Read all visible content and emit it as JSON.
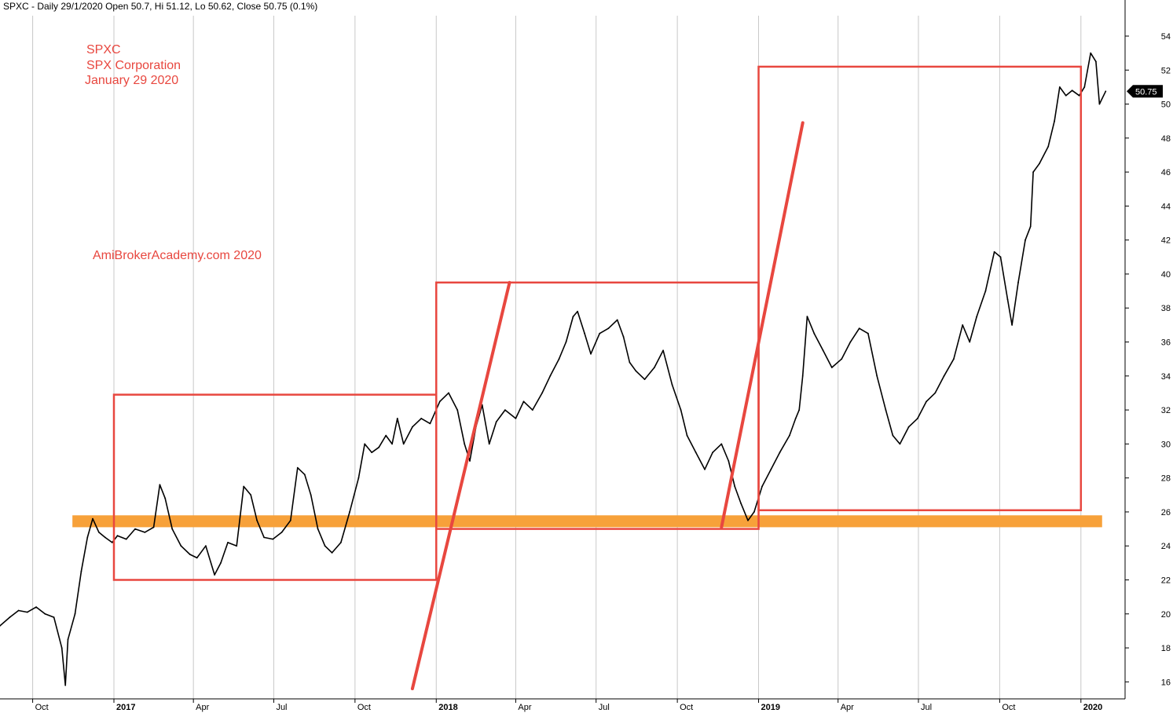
{
  "header": {
    "info_line": "SPXC - Daily 29/1/2020 Open 50.7, Hi 51.12, Lo 50.62, Close 50.75 (0.1%)"
  },
  "annotations": {
    "ticker": "SPXC",
    "company": "SPX Corporation",
    "date": "January 29 2020",
    "watermark": "AmiBrokerAcademy.com  2020"
  },
  "colors": {
    "price": "#000000",
    "drawing": "#e8473f",
    "support_band": "#f7a13a",
    "grid": "#c8c8c8"
  },
  "chart_data": {
    "type": "line",
    "title": "",
    "xlabel": "",
    "ylabel": "",
    "xlim": [
      "2016-08-25",
      "2020-02-20"
    ],
    "ylim": [
      15,
      55.2
    ],
    "y_ticks": [
      16,
      18,
      20,
      22,
      24,
      26,
      28,
      30,
      32,
      34,
      36,
      38,
      40,
      42,
      44,
      46,
      48,
      50,
      52,
      54
    ],
    "x_ticks": [
      {
        "date": "2016-10-01",
        "label": "Oct",
        "year": false
      },
      {
        "date": "2017-01-01",
        "label": "2017",
        "year": true
      },
      {
        "date": "2017-04-01",
        "label": "Apr",
        "year": false
      },
      {
        "date": "2017-07-01",
        "label": "Jul",
        "year": false
      },
      {
        "date": "2017-10-01",
        "label": "Oct",
        "year": false
      },
      {
        "date": "2018-01-01",
        "label": "2018",
        "year": true
      },
      {
        "date": "2018-04-01",
        "label": "Apr",
        "year": false
      },
      {
        "date": "2018-07-01",
        "label": "Jul",
        "year": false
      },
      {
        "date": "2018-10-01",
        "label": "Oct",
        "year": false
      },
      {
        "date": "2019-01-01",
        "label": "2019",
        "year": true
      },
      {
        "date": "2019-04-01",
        "label": "Apr",
        "year": false
      },
      {
        "date": "2019-07-01",
        "label": "Jul",
        "year": false
      },
      {
        "date": "2019-10-01",
        "label": "Oct",
        "year": false
      },
      {
        "date": "2020-01-01",
        "label": "2020",
        "year": true
      }
    ],
    "grid": true,
    "last_price_label": "50.75",
    "last_price": 50.75,
    "series": [
      {
        "values": [
          [
            "2016-08-25",
            19.3
          ],
          [
            "2016-09-05",
            19.8
          ],
          [
            "2016-09-15",
            20.2
          ],
          [
            "2016-09-25",
            20.1
          ],
          [
            "2016-10-05",
            20.4
          ],
          [
            "2016-10-15",
            20.0
          ],
          [
            "2016-10-25",
            19.8
          ],
          [
            "2016-11-03",
            18.0
          ],
          [
            "2016-11-07",
            15.8
          ],
          [
            "2016-11-10",
            18.5
          ],
          [
            "2016-11-18",
            20.0
          ],
          [
            "2016-11-25",
            22.5
          ],
          [
            "2016-12-02",
            24.5
          ],
          [
            "2016-12-08",
            25.6
          ],
          [
            "2016-12-15",
            24.8
          ],
          [
            "2016-12-22",
            24.5
          ],
          [
            "2016-12-30",
            24.2
          ],
          [
            "2017-01-05",
            24.6
          ],
          [
            "2017-01-15",
            24.4
          ],
          [
            "2017-01-25",
            25.0
          ],
          [
            "2017-02-05",
            24.8
          ],
          [
            "2017-02-15",
            25.1
          ],
          [
            "2017-02-22",
            27.6
          ],
          [
            "2017-02-28",
            26.8
          ],
          [
            "2017-03-08",
            25.0
          ],
          [
            "2017-03-18",
            24.0
          ],
          [
            "2017-03-28",
            23.5
          ],
          [
            "2017-04-05",
            23.3
          ],
          [
            "2017-04-15",
            24.0
          ],
          [
            "2017-04-25",
            22.3
          ],
          [
            "2017-05-02",
            23.0
          ],
          [
            "2017-05-10",
            24.2
          ],
          [
            "2017-05-20",
            24.0
          ],
          [
            "2017-05-28",
            27.5
          ],
          [
            "2017-06-05",
            27.0
          ],
          [
            "2017-06-12",
            25.5
          ],
          [
            "2017-06-20",
            24.5
          ],
          [
            "2017-06-30",
            24.4
          ],
          [
            "2017-07-10",
            24.8
          ],
          [
            "2017-07-20",
            25.5
          ],
          [
            "2017-07-28",
            28.6
          ],
          [
            "2017-08-05",
            28.2
          ],
          [
            "2017-08-12",
            27.0
          ],
          [
            "2017-08-20",
            25.0
          ],
          [
            "2017-08-28",
            24.0
          ],
          [
            "2017-09-05",
            23.6
          ],
          [
            "2017-09-15",
            24.2
          ],
          [
            "2017-09-25",
            26.0
          ],
          [
            "2017-10-05",
            28.0
          ],
          [
            "2017-10-12",
            30.0
          ],
          [
            "2017-10-20",
            29.5
          ],
          [
            "2017-10-28",
            29.8
          ],
          [
            "2017-11-05",
            30.5
          ],
          [
            "2017-11-12",
            30.0
          ],
          [
            "2017-11-18",
            31.5
          ],
          [
            "2017-11-25",
            30.0
          ],
          [
            "2017-12-05",
            31.0
          ],
          [
            "2017-12-15",
            31.5
          ],
          [
            "2017-12-25",
            31.2
          ],
          [
            "2018-01-05",
            32.5
          ],
          [
            "2018-01-15",
            33.0
          ],
          [
            "2018-01-25",
            32.0
          ],
          [
            "2018-02-02",
            30.0
          ],
          [
            "2018-02-08",
            29.0
          ],
          [
            "2018-02-15",
            31.0
          ],
          [
            "2018-02-22",
            32.3
          ],
          [
            "2018-03-02",
            30.0
          ],
          [
            "2018-03-10",
            31.3
          ],
          [
            "2018-03-20",
            32.0
          ],
          [
            "2018-04-01",
            31.5
          ],
          [
            "2018-04-10",
            32.5
          ],
          [
            "2018-04-20",
            32.0
          ],
          [
            "2018-05-01",
            33.0
          ],
          [
            "2018-05-10",
            34.0
          ],
          [
            "2018-05-20",
            35.0
          ],
          [
            "2018-05-28",
            36.0
          ],
          [
            "2018-06-05",
            37.5
          ],
          [
            "2018-06-10",
            37.8
          ],
          [
            "2018-06-18",
            36.5
          ],
          [
            "2018-06-25",
            35.3
          ],
          [
            "2018-07-05",
            36.5
          ],
          [
            "2018-07-15",
            36.8
          ],
          [
            "2018-07-25",
            37.3
          ],
          [
            "2018-08-01",
            36.3
          ],
          [
            "2018-08-08",
            34.8
          ],
          [
            "2018-08-15",
            34.3
          ],
          [
            "2018-08-25",
            33.8
          ],
          [
            "2018-09-05",
            34.5
          ],
          [
            "2018-09-15",
            35.5
          ],
          [
            "2018-09-25",
            33.5
          ],
          [
            "2018-10-05",
            32.0
          ],
          [
            "2018-10-12",
            30.5
          ],
          [
            "2018-10-22",
            29.5
          ],
          [
            "2018-11-01",
            28.5
          ],
          [
            "2018-11-10",
            29.5
          ],
          [
            "2018-11-20",
            30.0
          ],
          [
            "2018-11-28",
            29.0
          ],
          [
            "2018-12-05",
            27.5
          ],
          [
            "2018-12-12",
            26.5
          ],
          [
            "2018-12-20",
            25.5
          ],
          [
            "2018-12-27",
            26.0
          ],
          [
            "2019-01-05",
            27.5
          ],
          [
            "2019-01-15",
            28.5
          ],
          [
            "2019-01-25",
            29.5
          ],
          [
            "2019-02-05",
            30.5
          ],
          [
            "2019-02-12",
            31.5
          ],
          [
            "2019-02-16",
            32.0
          ],
          [
            "2019-02-20",
            34.0
          ],
          [
            "2019-02-25",
            37.5
          ],
          [
            "2019-03-05",
            36.5
          ],
          [
            "2019-03-15",
            35.5
          ],
          [
            "2019-03-25",
            34.5
          ],
          [
            "2019-04-05",
            35.0
          ],
          [
            "2019-04-15",
            36.0
          ],
          [
            "2019-04-25",
            36.8
          ],
          [
            "2019-05-05",
            36.5
          ],
          [
            "2019-05-15",
            34.0
          ],
          [
            "2019-05-25",
            32.0
          ],
          [
            "2019-06-02",
            30.5
          ],
          [
            "2019-06-10",
            30.0
          ],
          [
            "2019-06-20",
            31.0
          ],
          [
            "2019-06-30",
            31.5
          ],
          [
            "2019-07-10",
            32.5
          ],
          [
            "2019-07-20",
            33.0
          ],
          [
            "2019-07-30",
            34.0
          ],
          [
            "2019-08-10",
            35.0
          ],
          [
            "2019-08-20",
            37.0
          ],
          [
            "2019-08-28",
            36.0
          ],
          [
            "2019-09-05",
            37.5
          ],
          [
            "2019-09-15",
            39.0
          ],
          [
            "2019-09-25",
            41.3
          ],
          [
            "2019-10-02",
            41.0
          ],
          [
            "2019-10-10",
            38.5
          ],
          [
            "2019-10-15",
            37.0
          ],
          [
            "2019-10-22",
            39.5
          ],
          [
            "2019-10-30",
            42.0
          ],
          [
            "2019-11-05",
            42.8
          ],
          [
            "2019-11-08",
            46.0
          ],
          [
            "2019-11-15",
            46.5
          ],
          [
            "2019-11-25",
            47.5
          ],
          [
            "2019-12-02",
            49.0
          ],
          [
            "2019-12-08",
            51.0
          ],
          [
            "2019-12-15",
            50.5
          ],
          [
            "2019-12-22",
            50.8
          ],
          [
            "2019-12-30",
            50.5
          ],
          [
            "2020-01-05",
            51.0
          ],
          [
            "2020-01-12",
            53.0
          ],
          [
            "2020-01-18",
            52.5
          ],
          [
            "2020-01-22",
            50.0
          ],
          [
            "2020-01-29",
            50.75
          ]
        ]
      }
    ],
    "drawings": {
      "boxes": [
        {
          "from": "2017-01-01",
          "to": "2018-01-01",
          "low": 22.0,
          "high": 32.9
        },
        {
          "from": "2018-01-01",
          "to": "2019-01-01",
          "low": 25.0,
          "high": 39.5
        },
        {
          "from": "2019-01-01",
          "to": "2020-01-01",
          "low": 26.1,
          "high": 52.2
        }
      ],
      "trend_lines": [
        {
          "start": [
            "2017-12-05",
            15.6
          ],
          "end": [
            "2018-03-25",
            39.5
          ]
        },
        {
          "start": [
            "2018-11-20",
            25.1
          ],
          "end": [
            "2019-02-20",
            48.9
          ]
        }
      ],
      "support_band": {
        "from": "2016-11-15",
        "to": "2020-01-25",
        "low": 25.1,
        "high": 25.8
      }
    }
  }
}
